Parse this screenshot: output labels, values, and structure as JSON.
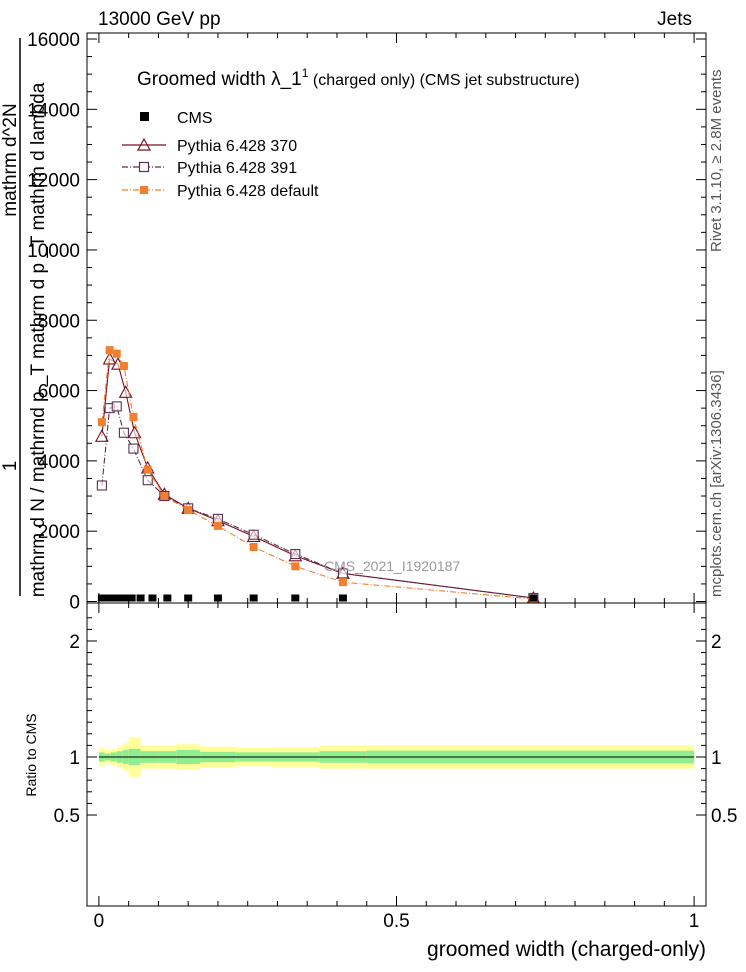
{
  "header": {
    "left": "13000 GeV pp",
    "right": "Jets"
  },
  "side_labels": {
    "rivet": "Rivet 3.1.10, ≥ 2.8M events",
    "mcplots": "mcplots.cern.ch [arXiv:1306.3436]"
  },
  "watermark": "CMS_2021_I1920187",
  "legend": {
    "title_main": "Groomed width  λ_1",
    "title_sup": "1",
    "title_tail": " (charged only) (CMS jet substructure)",
    "entries": [
      "CMS",
      "Pythia 6.428 370",
      "Pythia 6.428 391",
      "Pythia 6.428 default"
    ]
  },
  "colors": {
    "cms": "#000000",
    "p370": "#7a1020",
    "p391": "#5a3050",
    "pdefault": "#f08030",
    "band_inner": "#90ee90",
    "band_outer": "#ffff99"
  },
  "chart_data": {
    "type": "line",
    "main": {
      "ylabel_lines": [
        "1",
        "mathrm d N / mathrmd p _T mathrm d p _T mathrm d lambda",
        "mathrm d^2N"
      ],
      "ylim": [
        0,
        16000
      ],
      "yticks": [
        0,
        2000,
        4000,
        6000,
        8000,
        10000,
        12000,
        14000,
        16000
      ],
      "ytick_labels": [
        "0",
        "2000",
        "4000",
        "6000",
        "8000",
        "10000",
        "12000",
        "14000",
        "16000"
      ],
      "cms_x": [
        0.005,
        0.015,
        0.025,
        0.035,
        0.045,
        0.055,
        0.07,
        0.09,
        0.115,
        0.15,
        0.2,
        0.26,
        0.33,
        0.41,
        0.73
      ],
      "series": [
        {
          "name": "Pythia 6.428 370",
          "x": [
            0.005,
            0.018,
            0.032,
            0.045,
            0.06,
            0.082,
            0.11,
            0.15,
            0.2,
            0.26,
            0.33,
            0.41,
            0.73
          ],
          "y": [
            4700,
            6900,
            6750,
            5950,
            4800,
            3800,
            3050,
            2650,
            2300,
            1850,
            1300,
            800,
            100
          ]
        },
        {
          "name": "Pythia 6.428 391",
          "x": [
            0.005,
            0.018,
            0.03,
            0.042,
            0.058,
            0.082,
            0.11,
            0.15,
            0.2,
            0.26,
            0.33,
            0.41,
            0.73
          ],
          "y": [
            3300,
            5500,
            5550,
            4800,
            4350,
            3450,
            3000,
            2650,
            2350,
            1900,
            1350,
            800,
            100
          ]
        },
        {
          "name": "Pythia 6.428 default",
          "x": [
            0.005,
            0.018,
            0.03,
            0.042,
            0.058,
            0.082,
            0.11,
            0.15,
            0.2,
            0.26,
            0.33,
            0.41,
            0.73
          ],
          "y": [
            5100,
            7150,
            7050,
            6700,
            5250,
            3750,
            3000,
            2600,
            2150,
            1550,
            1000,
            550,
            70
          ]
        }
      ]
    },
    "ratio": {
      "ylabel": "Ratio to CMS",
      "ylim": [
        0.35,
        2.3
      ],
      "yticks": [
        0.5,
        1,
        2
      ],
      "ytick_labels": [
        "0.5",
        "1",
        "2"
      ],
      "bins": [
        {
          "x0": 0.0,
          "x1": 0.01,
          "inner": 0.04,
          "outer": 0.08
        },
        {
          "x0": 0.01,
          "x1": 0.02,
          "inner": 0.03,
          "outer": 0.06
        },
        {
          "x0": 0.02,
          "x1": 0.03,
          "inner": 0.04,
          "outer": 0.07
        },
        {
          "x0": 0.03,
          "x1": 0.04,
          "inner": 0.05,
          "outer": 0.09
        },
        {
          "x0": 0.04,
          "x1": 0.05,
          "inner": 0.06,
          "outer": 0.12
        },
        {
          "x0": 0.05,
          "x1": 0.07,
          "inner": 0.07,
          "outer": 0.17
        },
        {
          "x0": 0.07,
          "x1": 0.1,
          "inner": 0.05,
          "outer": 0.1
        },
        {
          "x0": 0.1,
          "x1": 0.13,
          "inner": 0.05,
          "outer": 0.1
        },
        {
          "x0": 0.13,
          "x1": 0.17,
          "inner": 0.06,
          "outer": 0.11
        },
        {
          "x0": 0.17,
          "x1": 0.23,
          "inner": 0.045,
          "outer": 0.09
        },
        {
          "x0": 0.23,
          "x1": 0.29,
          "inner": 0.04,
          "outer": 0.08
        },
        {
          "x0": 0.29,
          "x1": 0.37,
          "inner": 0.04,
          "outer": 0.085
        },
        {
          "x0": 0.37,
          "x1": 0.45,
          "inner": 0.05,
          "outer": 0.1
        },
        {
          "x0": 0.45,
          "x1": 1.0,
          "inner": 0.055,
          "outer": 0.1
        }
      ]
    },
    "xlabel": "groomed width (charged-only)",
    "xlim": [
      -0.02,
      1.02
    ],
    "xticks": [
      0,
      0.5,
      1
    ],
    "xtick_labels": [
      "0",
      "0.5",
      "1"
    ],
    "grid": false,
    "legend_position": "top-left"
  }
}
